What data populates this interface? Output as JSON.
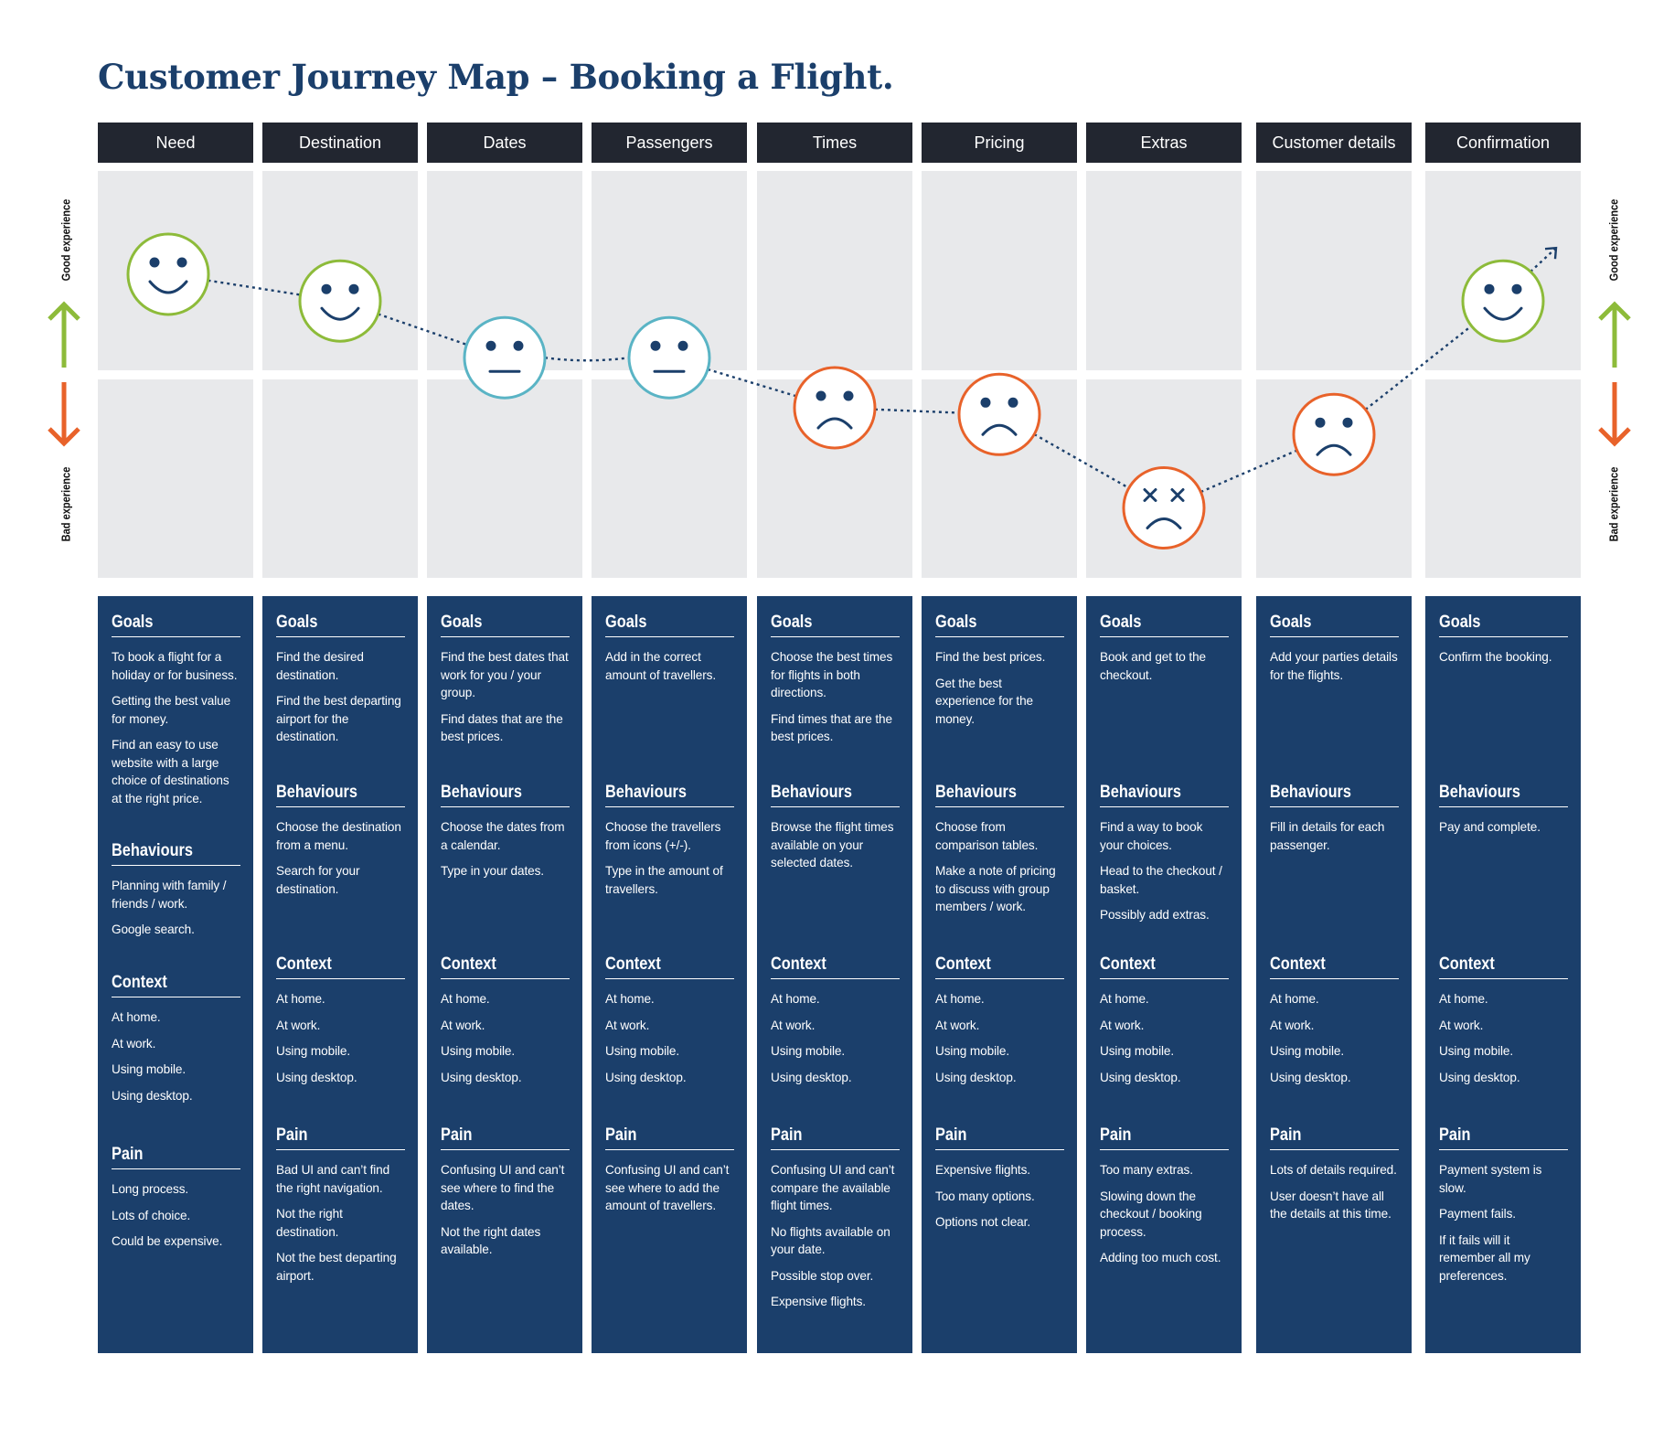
{
  "title": "Customer Journey Map – Booking a Flight.",
  "axis": {
    "good_label": "Good experience",
    "bad_label": "Bad experience",
    "good_color": "#8dbb3a",
    "bad_color": "#e8622a"
  },
  "colors": {
    "header_bg": "#222630",
    "panel_bg": "#1b3f6b",
    "grid_bg": "#e8e9eb",
    "happy": "#8dbb3a",
    "neutral": "#5ab4c5",
    "sad": "#e8622a",
    "line": "#1b3f6b"
  },
  "stages": [
    {
      "name": "Need",
      "mood": "happy",
      "level": 0.8,
      "sections": [
        {
          "title": "Goals",
          "items": [
            "To book a flight for a holiday or for business.",
            "Getting the best value for money.",
            "Find an easy to use website with a large choice of destinations at the right price."
          ]
        },
        {
          "title": "Behaviours",
          "items": [
            "Planning with family / friends / work.",
            "Google search."
          ]
        },
        {
          "title": "Context",
          "items": [
            "At home.",
            "At work.",
            "Using mobile.",
            "Using desktop."
          ]
        },
        {
          "title": "Pain",
          "items": [
            "Long process.",
            "Lots of choice.",
            "Could be expensive."
          ]
        }
      ]
    },
    {
      "name": "Destination",
      "mood": "happy",
      "level": 0.72,
      "sections": [
        {
          "title": "Goals",
          "items": [
            "Find the desired destination.",
            "Find the best departing airport for the destination."
          ]
        },
        {
          "title": "Behaviours",
          "items": [
            "Choose the destination from a menu.",
            "Search for your destination."
          ]
        },
        {
          "title": "Context",
          "items": [
            "At home.",
            "At work.",
            "Using mobile.",
            "Using desktop."
          ]
        },
        {
          "title": "Pain",
          "items": [
            "Bad UI and can’t find the right navigation.",
            "Not the right destination.",
            "Not the best departing airport."
          ]
        }
      ]
    },
    {
      "name": "Dates",
      "mood": "neutral",
      "level": 0.55,
      "sections": [
        {
          "title": "Goals",
          "items": [
            "Find the best dates that work for you / your group.",
            "Find dates that are the best prices."
          ]
        },
        {
          "title": "Behaviours",
          "items": [
            "Choose the dates from a calendar.",
            "Type in your dates."
          ]
        },
        {
          "title": "Context",
          "items": [
            "At home.",
            "At work.",
            "Using mobile.",
            "Using desktop."
          ]
        },
        {
          "title": "Pain",
          "items": [
            "Confusing UI and can’t see where to find the dates.",
            "Not the right dates available."
          ]
        }
      ]
    },
    {
      "name": "Passengers",
      "mood": "neutral",
      "level": 0.55,
      "sections": [
        {
          "title": "Goals",
          "items": [
            "Add in the correct amount of travellers."
          ]
        },
        {
          "title": "Behaviours",
          "items": [
            "Choose the travellers from icons (+/-).",
            "Type in the amount of travellers."
          ]
        },
        {
          "title": "Context",
          "items": [
            "At home.",
            "At work.",
            "Using mobile.",
            "Using desktop."
          ]
        },
        {
          "title": "Pain",
          "items": [
            "Confusing UI and can’t see where to add the amount of travellers."
          ]
        }
      ]
    },
    {
      "name": "Times",
      "mood": "sad",
      "level": 0.4,
      "sections": [
        {
          "title": "Goals",
          "items": [
            "Choose the best times for flights in both directions.",
            "Find times that are the best prices."
          ]
        },
        {
          "title": "Behaviours",
          "items": [
            "Browse the flight times available on your selected dates."
          ]
        },
        {
          "title": "Context",
          "items": [
            "At home.",
            "At work.",
            "Using mobile.",
            "Using desktop."
          ]
        },
        {
          "title": "Pain",
          "items": [
            "Confusing UI and can’t compare the available flight times.",
            "No flights available on your date.",
            "Possible stop over.",
            "Expensive flights."
          ]
        }
      ]
    },
    {
      "name": "Pricing",
      "mood": "sad",
      "level": 0.38,
      "sections": [
        {
          "title": "Goals",
          "items": [
            "Find the best prices.",
            "Get the best experience for the money."
          ]
        },
        {
          "title": "Behaviours",
          "items": [
            "Choose from comparison tables.",
            "Make a note of pricing to discuss with group members / work."
          ]
        },
        {
          "title": "Context",
          "items": [
            "At home.",
            "At work.",
            "Using mobile.",
            "Using desktop."
          ]
        },
        {
          "title": "Pain",
          "items": [
            "Expensive flights.",
            "Too many options.",
            "Options not clear."
          ]
        }
      ]
    },
    {
      "name": "Extras",
      "mood": "dead",
      "level": 0.1,
      "sections": [
        {
          "title": "Goals",
          "items": [
            "Book and get to the checkout."
          ]
        },
        {
          "title": "Behaviours",
          "items": [
            "Find a way to book your choices.",
            "Head to the checkout / basket.",
            "Possibly add extras."
          ]
        },
        {
          "title": "Context",
          "items": [
            "At home.",
            "At work.",
            "Using mobile.",
            "Using desktop."
          ]
        },
        {
          "title": "Pain",
          "items": [
            "Too many extras.",
            "Slowing down the checkout / booking process.",
            "Adding too much cost."
          ]
        }
      ]
    },
    {
      "name": "Customer details",
      "mood": "sad",
      "level": 0.32,
      "sections": [
        {
          "title": "Goals",
          "items": [
            "Add your parties details for the flights."
          ]
        },
        {
          "title": "Behaviours",
          "items": [
            "Fill in details for each passenger."
          ]
        },
        {
          "title": "Context",
          "items": [
            "At home.",
            "At work.",
            "Using mobile.",
            "Using desktop."
          ]
        },
        {
          "title": "Pain",
          "items": [
            "Lots of details required.",
            "User doesn’t have all the details at this time."
          ]
        }
      ]
    },
    {
      "name": "Confirmation",
      "mood": "happy",
      "level": 0.72,
      "sections": [
        {
          "title": "Goals",
          "items": [
            "Confirm the booking."
          ]
        },
        {
          "title": "Behaviours",
          "items": [
            "Pay and complete."
          ]
        },
        {
          "title": "Context",
          "items": [
            "At home.",
            "At work.",
            "Using mobile.",
            "Using desktop."
          ]
        },
        {
          "title": "Pain",
          "items": [
            "Payment system is slow.",
            "Payment fails.",
            "If it fails will it remember all my preferences."
          ]
        }
      ]
    }
  ]
}
